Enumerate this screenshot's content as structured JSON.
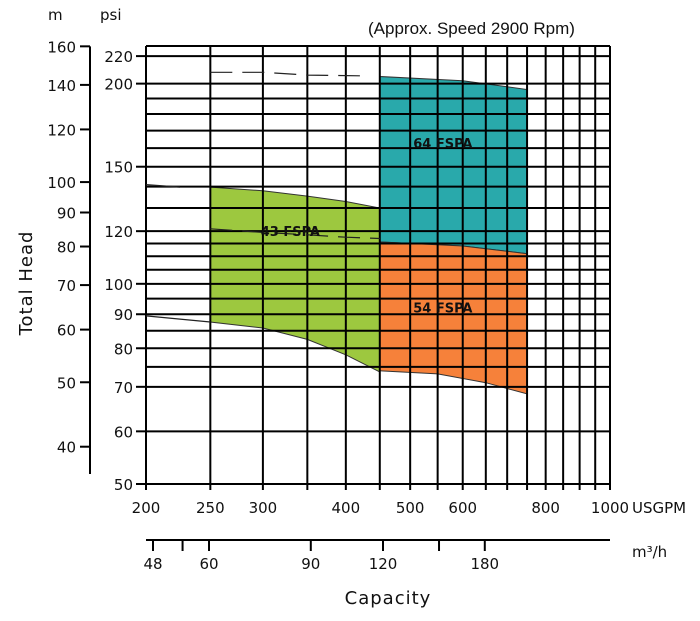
{
  "chart_data": {
    "type": "area",
    "note": "(Approx. Speed 2900 Rpm)",
    "ylabel": "Total Head",
    "xlabel": "Capacity",
    "x_unit_primary": "USGPM",
    "x_unit_secondary": "m³/h",
    "y_unit_left": "m",
    "y_unit_right": "psi",
    "x_scale": "log",
    "y_scale": "log",
    "xlim": [
      200,
      1000
    ],
    "ylim_psi": [
      50,
      226
    ],
    "grid": true,
    "x_ticks_usgpm": [
      "200",
      "250",
      "300",
      "400",
      "500",
      "600",
      "800",
      "1000"
    ],
    "x_grid_usgpm": [
      200,
      250,
      300,
      350,
      400,
      450,
      500,
      550,
      600,
      650,
      700,
      750,
      800,
      850,
      900,
      950,
      1000
    ],
    "x_ticks_m3h": [
      {
        "value": 48,
        "label": "48"
      },
      {
        "value": 54,
        "label": ""
      },
      {
        "value": 60,
        "label": "60"
      },
      {
        "value": 90,
        "label": "90"
      },
      {
        "value": 120,
        "label": "120"
      },
      {
        "value": 150,
        "label": ""
      },
      {
        "value": 180,
        "label": "180"
      }
    ],
    "y_ticks_psi": [
      "50",
      "60",
      "70",
      "80",
      "90",
      "100",
      "120",
      "150",
      "200",
      "220"
    ],
    "y_grid_psi": [
      50,
      60,
      70,
      75,
      80,
      85,
      90,
      95,
      100,
      105,
      110,
      115,
      120,
      130,
      140,
      150,
      160,
      170,
      180,
      190,
      200,
      220
    ],
    "y_ticks_m": [
      "40",
      "50",
      "60",
      "70",
      "80",
      "90",
      "100",
      "120",
      "140",
      "160"
    ],
    "colors": {
      "43 FSPA": "#9dc83f",
      "64 FSPA": "#29a9ab",
      "54 FSPA": "#f6813a"
    },
    "regions": [
      {
        "name": "43 FSPA",
        "label": "43 FSPA",
        "label_at": [
          330,
          118
        ],
        "top": [
          [
            250,
            139.8
          ],
          [
            300,
            138
          ],
          [
            350,
            135.5
          ],
          [
            400,
            133
          ],
          [
            450,
            130
          ]
        ],
        "bottom": [
          [
            250,
            87.6
          ],
          [
            300,
            85.8
          ],
          [
            350,
            82.5
          ],
          [
            400,
            78.2
          ],
          [
            450,
            73.7
          ]
        ]
      },
      {
        "name": "64 FSPA",
        "label": "64 FSPA",
        "label_at": [
          560,
          160
        ],
        "top": [
          [
            450,
            205
          ],
          [
            600,
            202
          ],
          [
            750,
            196
          ]
        ],
        "bottom": [
          [
            450,
            115.6
          ],
          [
            600,
            114
          ],
          [
            750,
            111
          ]
        ]
      },
      {
        "name": "54 FSPA",
        "label": "54 FSPA",
        "label_at": [
          560,
          90.5
        ],
        "top": [
          [
            450,
            115.6
          ],
          [
            600,
            114
          ],
          [
            750,
            111
          ]
        ],
        "bottom": [
          [
            450,
            74
          ],
          [
            550,
            73.2
          ],
          [
            650,
            71
          ],
          [
            750,
            68.3
          ]
        ]
      }
    ],
    "curves": [
      {
        "style": "dashed",
        "points": [
          [
            250,
            208
          ],
          [
            300,
            208
          ],
          [
            350,
            206
          ],
          [
            420,
            205.5
          ]
        ]
      },
      {
        "style": "solid",
        "points": [
          [
            200,
            141
          ],
          [
            225,
            139.8
          ]
        ]
      },
      {
        "style": "dashed",
        "points": [
          [
            250,
            121
          ],
          [
            300,
            119.5
          ],
          [
            350,
            118.5
          ],
          [
            400,
            117.5
          ],
          [
            450,
            117
          ]
        ]
      },
      {
        "style": "solid",
        "points": [
          [
            200,
            89.5
          ],
          [
            225,
            88.5
          ],
          [
            250,
            87.6
          ]
        ]
      }
    ]
  }
}
